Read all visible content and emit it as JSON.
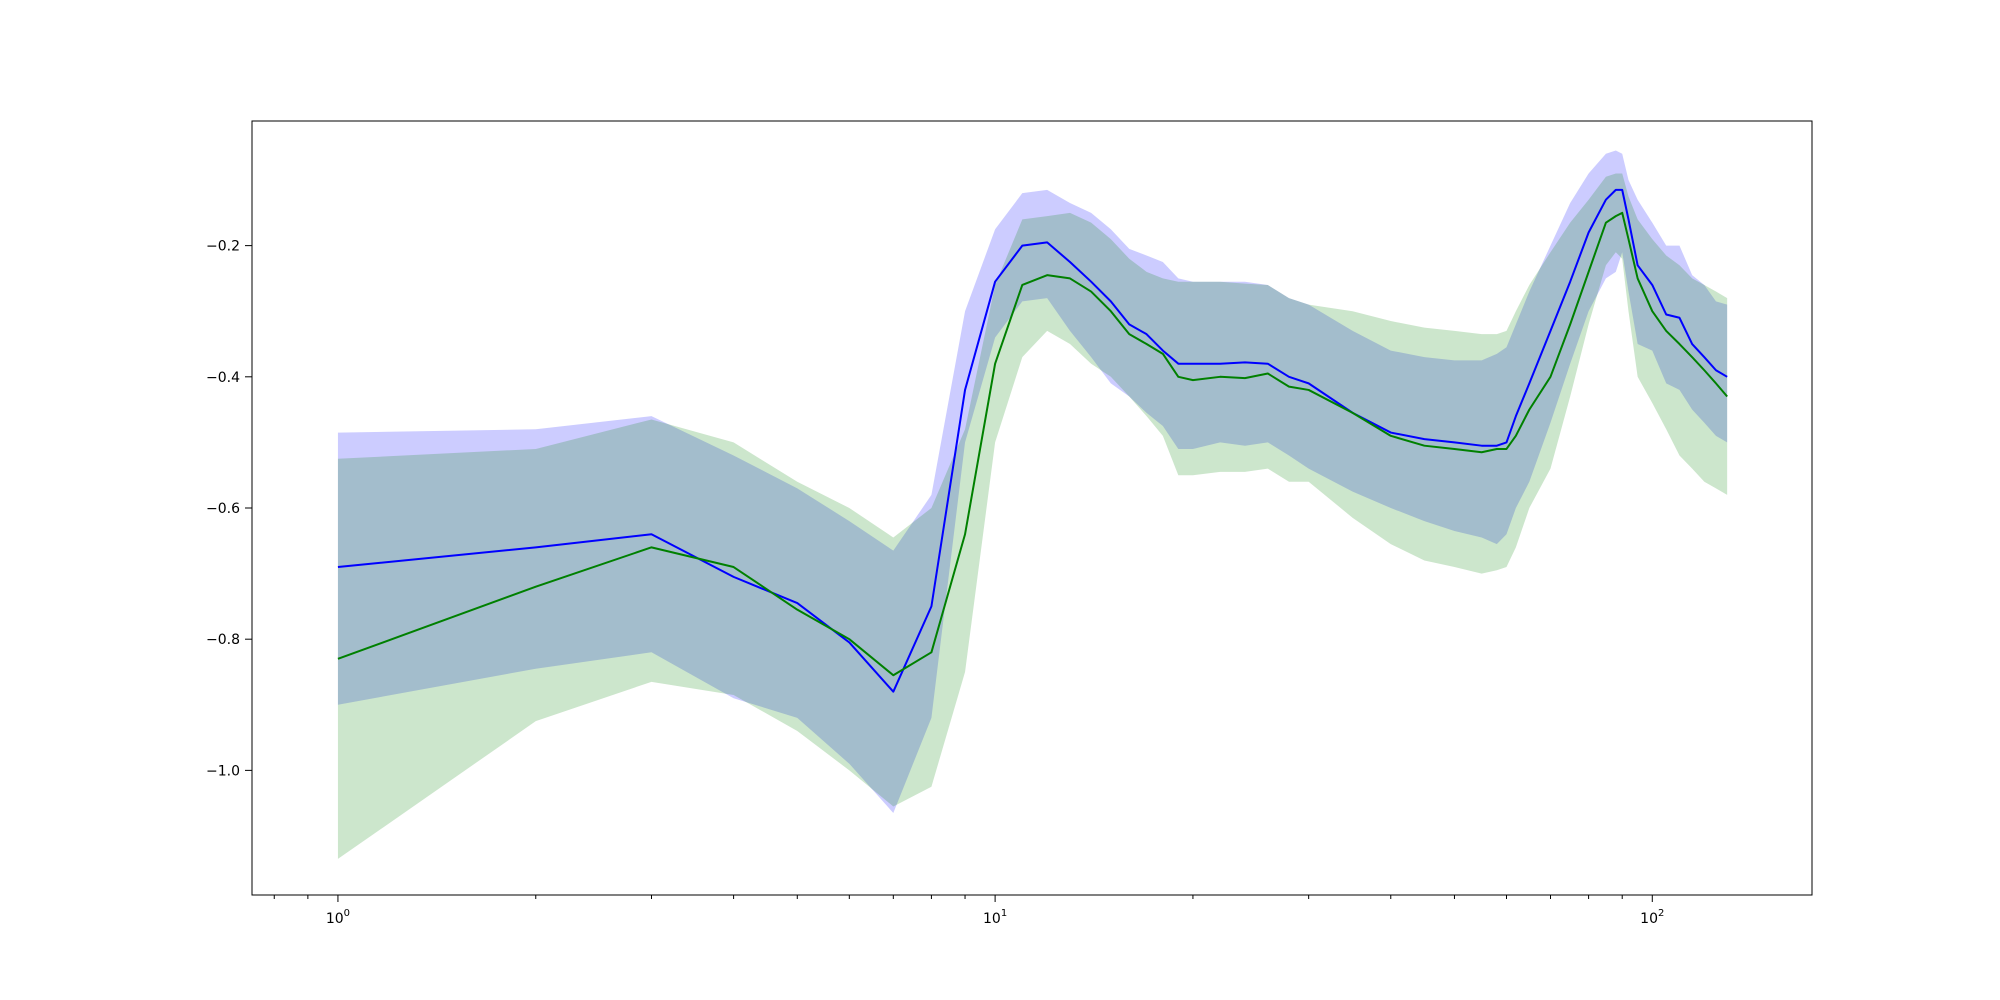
{
  "chart_data": {
    "type": "line",
    "title": "",
    "xlabel": "",
    "ylabel": "",
    "x_scale": "log",
    "xlim": [
      0.74,
      175
    ],
    "ylim": [
      -1.19,
      -0.01
    ],
    "grid": false,
    "legend": "none",
    "x_ticks": [
      {
        "value": 1,
        "base": "10",
        "exp": "0"
      },
      {
        "value": 10,
        "base": "10",
        "exp": "1"
      },
      {
        "value": 100,
        "base": "10",
        "exp": "2"
      }
    ],
    "y_ticks": [
      {
        "value": -0.2,
        "label": "−0.2"
      },
      {
        "value": -0.4,
        "label": "−0.4"
      },
      {
        "value": -0.6,
        "label": "−0.6"
      },
      {
        "value": -0.8,
        "label": "−0.8"
      },
      {
        "value": -1.0,
        "label": "−1.0"
      }
    ],
    "x": [
      1,
      2,
      3,
      4,
      5,
      6,
      7,
      8,
      9,
      10,
      11,
      12,
      13,
      14,
      15,
      16,
      17,
      18,
      19,
      20,
      22,
      24,
      26,
      28,
      30,
      35,
      40,
      45,
      50,
      55,
      58,
      60,
      62,
      65,
      70,
      75,
      80,
      85,
      88,
      90,
      92,
      95,
      100,
      105,
      110,
      115,
      120,
      125,
      130
    ],
    "series": [
      {
        "color": "#0000ff",
        "band_color": "#0000ff",
        "values": [
          -0.69,
          -0.66,
          -0.64,
          -0.705,
          -0.745,
          -0.805,
          -0.88,
          -0.75,
          -0.42,
          -0.255,
          -0.2,
          -0.195,
          -0.225,
          -0.255,
          -0.285,
          -0.32,
          -0.335,
          -0.36,
          -0.38,
          -0.38,
          -0.38,
          -0.378,
          -0.38,
          -0.4,
          -0.41,
          -0.455,
          -0.485,
          -0.495,
          -0.5,
          -0.505,
          -0.505,
          -0.5,
          -0.46,
          -0.41,
          -0.33,
          -0.255,
          -0.18,
          -0.13,
          -0.115,
          -0.115,
          -0.16,
          -0.23,
          -0.26,
          -0.305,
          -0.31,
          -0.35,
          -0.37,
          -0.39,
          -0.4
        ],
        "lower": [
          -0.9,
          -0.845,
          -0.82,
          -0.89,
          -0.92,
          -0.99,
          -1.065,
          -0.92,
          -0.5,
          -0.34,
          -0.285,
          -0.28,
          -0.33,
          -0.37,
          -0.41,
          -0.43,
          -0.455,
          -0.475,
          -0.51,
          -0.51,
          -0.5,
          -0.505,
          -0.5,
          -0.52,
          -0.54,
          -0.575,
          -0.6,
          -0.62,
          -0.635,
          -0.645,
          -0.655,
          -0.64,
          -0.6,
          -0.56,
          -0.47,
          -0.38,
          -0.3,
          -0.25,
          -0.24,
          -0.21,
          -0.27,
          -0.35,
          -0.36,
          -0.41,
          -0.42,
          -0.45,
          -0.47,
          -0.49,
          -0.5
        ],
        "upper": [
          -0.485,
          -0.48,
          -0.46,
          -0.52,
          -0.57,
          -0.62,
          -0.665,
          -0.58,
          -0.3,
          -0.175,
          -0.12,
          -0.115,
          -0.135,
          -0.15,
          -0.175,
          -0.205,
          -0.215,
          -0.225,
          -0.25,
          -0.255,
          -0.255,
          -0.255,
          -0.26,
          -0.28,
          -0.29,
          -0.33,
          -0.36,
          -0.37,
          -0.375,
          -0.375,
          -0.365,
          -0.355,
          -0.32,
          -0.27,
          -0.2,
          -0.135,
          -0.09,
          -0.06,
          -0.055,
          -0.06,
          -0.1,
          -0.13,
          -0.165,
          -0.2,
          -0.2,
          -0.245,
          -0.26,
          -0.285,
          -0.29
        ]
      },
      {
        "color": "#008000",
        "band_color": "#008000",
        "values": [
          -0.83,
          -0.72,
          -0.66,
          -0.69,
          -0.755,
          -0.8,
          -0.855,
          -0.82,
          -0.64,
          -0.38,
          -0.26,
          -0.245,
          -0.25,
          -0.27,
          -0.3,
          -0.335,
          -0.35,
          -0.365,
          -0.4,
          -0.405,
          -0.4,
          -0.402,
          -0.395,
          -0.415,
          -0.42,
          -0.455,
          -0.49,
          -0.505,
          -0.51,
          -0.515,
          -0.51,
          -0.51,
          -0.49,
          -0.45,
          -0.4,
          -0.32,
          -0.24,
          -0.165,
          -0.155,
          -0.15,
          -0.19,
          -0.25,
          -0.3,
          -0.33,
          -0.35,
          -0.37,
          -0.39,
          -0.41,
          -0.43
        ],
        "lower": [
          -1.135,
          -0.925,
          -0.865,
          -0.885,
          -0.94,
          -1.0,
          -1.055,
          -1.025,
          -0.85,
          -0.5,
          -0.37,
          -0.33,
          -0.35,
          -0.38,
          -0.4,
          -0.43,
          -0.46,
          -0.49,
          -0.55,
          -0.55,
          -0.545,
          -0.545,
          -0.54,
          -0.56,
          -0.56,
          -0.615,
          -0.655,
          -0.68,
          -0.69,
          -0.7,
          -0.695,
          -0.69,
          -0.66,
          -0.6,
          -0.54,
          -0.43,
          -0.32,
          -0.23,
          -0.21,
          -0.22,
          -0.3,
          -0.4,
          -0.44,
          -0.48,
          -0.52,
          -0.54,
          -0.56,
          -0.57,
          -0.58
        ],
        "upper": [
          -0.525,
          -0.51,
          -0.465,
          -0.5,
          -0.56,
          -0.6,
          -0.645,
          -0.6,
          -0.48,
          -0.26,
          -0.16,
          -0.155,
          -0.15,
          -0.165,
          -0.19,
          -0.22,
          -0.24,
          -0.25,
          -0.255,
          -0.255,
          -0.255,
          -0.258,
          -0.26,
          -0.28,
          -0.29,
          -0.3,
          -0.315,
          -0.325,
          -0.33,
          -0.335,
          -0.335,
          -0.33,
          -0.3,
          -0.26,
          -0.21,
          -0.165,
          -0.13,
          -0.095,
          -0.09,
          -0.09,
          -0.125,
          -0.16,
          -0.19,
          -0.215,
          -0.23,
          -0.25,
          -0.26,
          -0.27,
          -0.28
        ]
      }
    ]
  }
}
